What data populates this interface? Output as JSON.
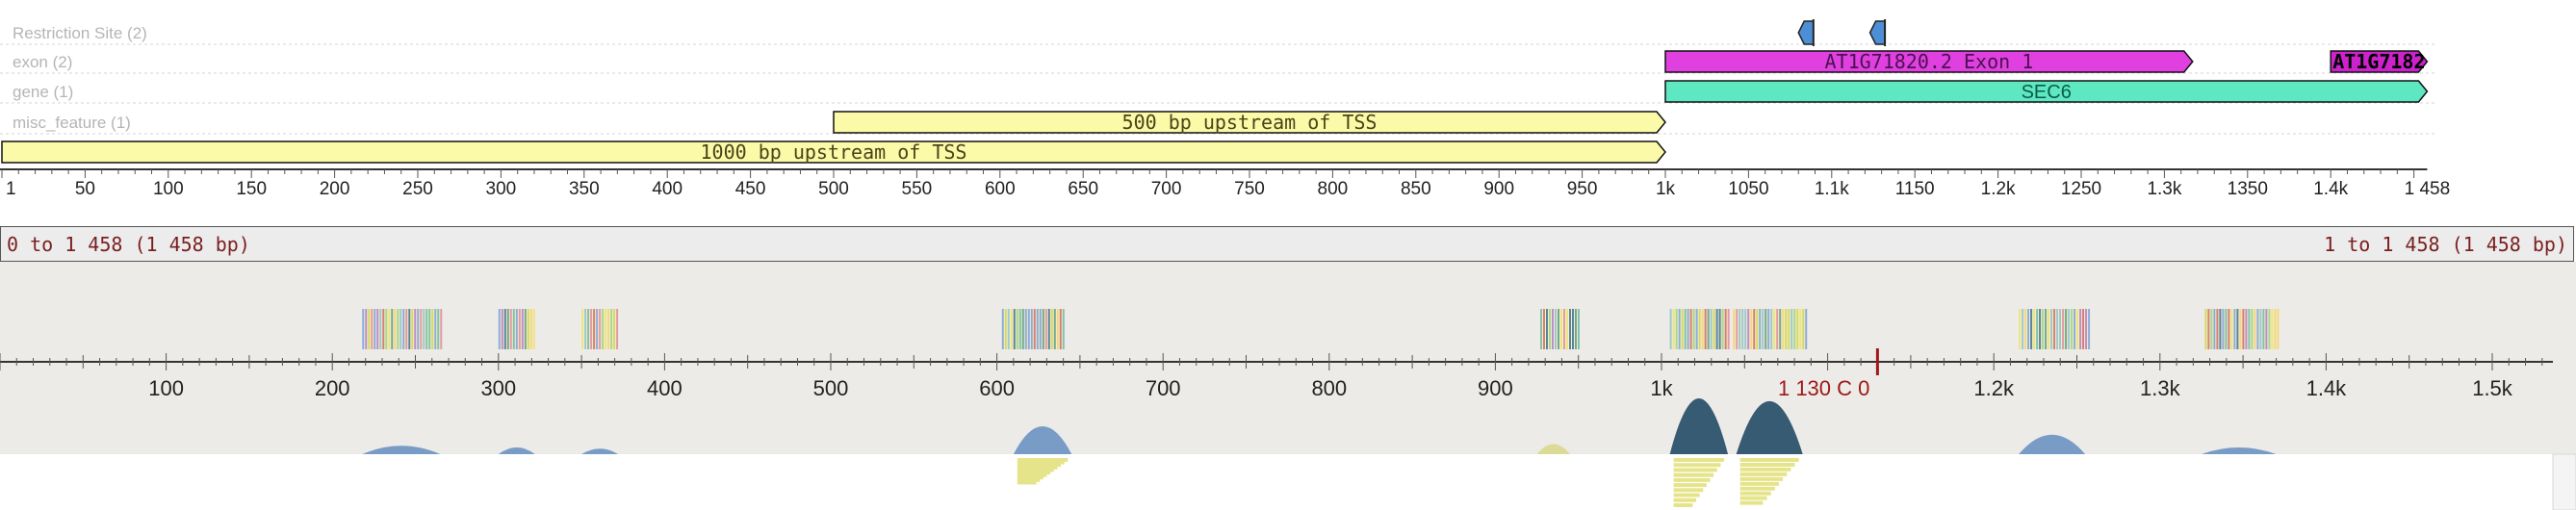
{
  "tracks": [
    {
      "label": "Restriction Site (2)"
    },
    {
      "label": "exon (2)"
    },
    {
      "label": "gene (1)"
    },
    {
      "label": "misc_feature (1)"
    }
  ],
  "features": [
    {
      "id": "rs1",
      "type": "restriction",
      "start": 1080,
      "end": 1089,
      "dir": "left",
      "color": "#4d8fd6",
      "label": ""
    },
    {
      "id": "rs2",
      "type": "restriction",
      "start": 1123,
      "end": 1132,
      "dir": "left",
      "color": "#4d8fd6",
      "label": ""
    },
    {
      "id": "exon1",
      "type": "exon",
      "start": 1000,
      "end": 1317,
      "dir": "right",
      "color": "#e040e0",
      "label": "AT1G71820.2 Exon 1"
    },
    {
      "id": "exon2",
      "type": "exon",
      "start": 1400,
      "end": 1458,
      "dir": "right",
      "color": "#cc22cc",
      "label": "AT1G7182"
    },
    {
      "id": "gene",
      "type": "gene",
      "start": 1000,
      "end": 1458,
      "dir": "right",
      "color": "#5ee8c2",
      "label": "SEC6"
    },
    {
      "id": "misc500",
      "type": "misc",
      "start": 500,
      "end": 1000,
      "dir": "right",
      "color": "#fafaa8",
      "label": "500 bp upstream of TSS"
    },
    {
      "id": "misc1000",
      "type": "misc",
      "start": 0,
      "end": 1000,
      "dir": "right",
      "color": "#fafaa8",
      "label": "1000 bp upstream of TSS"
    }
  ],
  "ruler": {
    "ticks": [
      "1",
      "50",
      "100",
      "150",
      "200",
      "250",
      "300",
      "350",
      "400",
      "450",
      "500",
      "550",
      "600",
      "650",
      "700",
      "750",
      "800",
      "850",
      "900",
      "950",
      "1k",
      "1050",
      "1.1k",
      "1150",
      "1.2k",
      "1250",
      "1.3k",
      "1350",
      "1.4k",
      "1 458"
    ]
  },
  "sequence_bar": {
    "left": "0 to 1 458 (1 458 bp)",
    "right": "1 to 1 458 (1 458 bp)"
  },
  "overview": {
    "ticks": [
      "100",
      "200",
      "300",
      "400",
      "500",
      "600",
      "700",
      "800",
      "900",
      "1k",
      "1.2k",
      "1.3k",
      "1.4k",
      "1.5k"
    ],
    "cursor_label": "1 130 C 0",
    "reads": [
      {
        "start": 218,
        "end": 265,
        "height": 0.15,
        "color": "#6b93c2"
      },
      {
        "start": 300,
        "end": 322,
        "height": 0.12,
        "color": "#6b93c2"
      },
      {
        "start": 350,
        "end": 372,
        "height": 0.1,
        "color": "#6b93c2"
      },
      {
        "start": 610,
        "end": 645,
        "height": 0.5,
        "color": "#6b93c2"
      },
      {
        "start": 925,
        "end": 945,
        "height": 0.18,
        "color": "#d9d98c"
      },
      {
        "start": 1005,
        "end": 1040,
        "height": 1.0,
        "color": "#234b66"
      },
      {
        "start": 1045,
        "end": 1085,
        "height": 0.95,
        "color": "#234b66"
      },
      {
        "start": 1215,
        "end": 1255,
        "height": 0.35,
        "color": "#6b93c2"
      },
      {
        "start": 1325,
        "end": 1370,
        "height": 0.12,
        "color": "#6b93c2"
      }
    ],
    "blocks": [
      {
        "start": 218,
        "end": 265
      },
      {
        "start": 300,
        "end": 322
      },
      {
        "start": 350,
        "end": 372
      },
      {
        "start": 603,
        "end": 640
      },
      {
        "start": 927,
        "end": 950
      },
      {
        "start": 1005,
        "end": 1040
      },
      {
        "start": 1043,
        "end": 1087
      },
      {
        "start": 1215,
        "end": 1258
      },
      {
        "start": 1327,
        "end": 1372
      }
    ]
  },
  "colors": {
    "ruler_line": "#333333",
    "sequence_text": "#7a1f1f",
    "cursor": "#a01818",
    "overview_bg": "#ecebe8"
  }
}
